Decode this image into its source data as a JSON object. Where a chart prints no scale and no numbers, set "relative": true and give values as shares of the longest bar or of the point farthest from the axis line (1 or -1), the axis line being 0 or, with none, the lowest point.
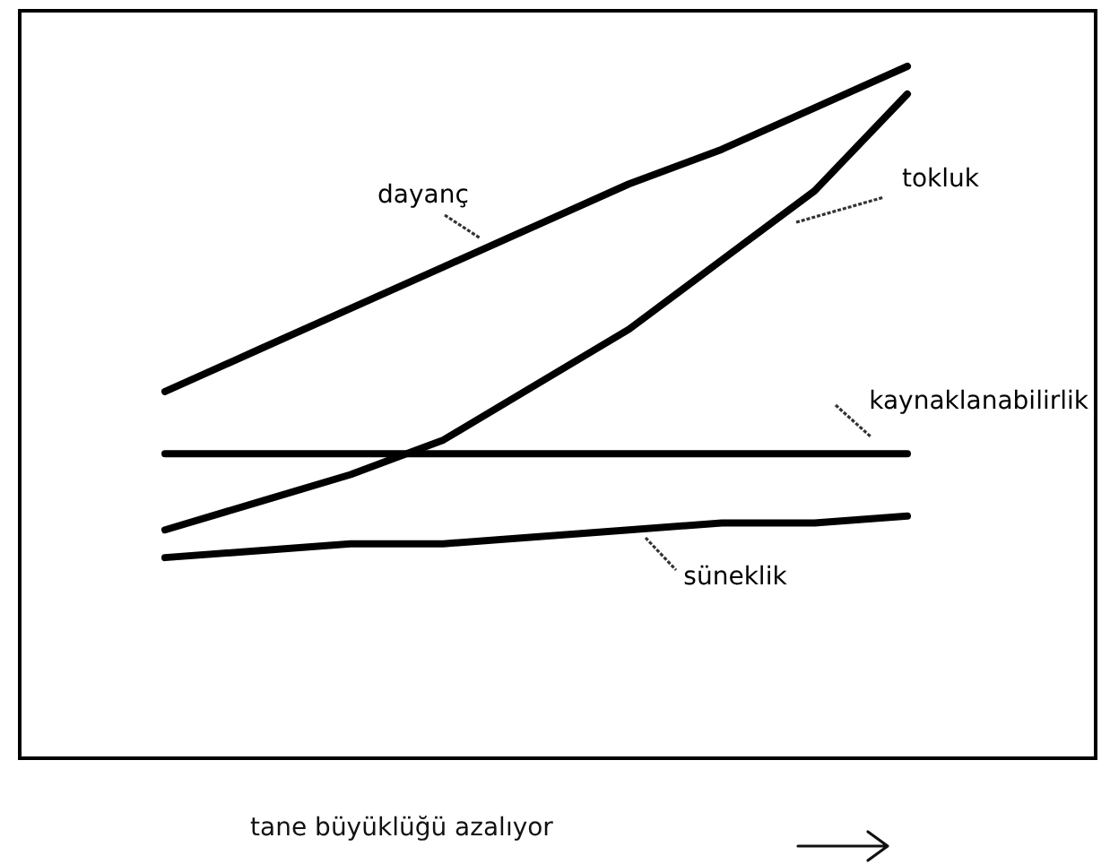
{
  "chart_data": {
    "type": "line",
    "xlabel": "tane büyüklüğü azalıyor",
    "relative": true,
    "categories": [
      null,
      null,
      null,
      null,
      null,
      null,
      null,
      null,
      null
    ],
    "series": [
      {
        "name": "dayanç",
        "color": "#000000",
        "values": [
          0.53,
          0.59,
          0.65,
          0.71,
          0.77,
          0.83,
          0.88,
          0.94,
          1
        ]
      },
      {
        "name": "tokluk",
        "color": "#000000",
        "values": [
          0.33,
          0.37,
          0.41,
          0.46,
          0.54,
          0.62,
          0.72,
          0.82,
          0.96
        ]
      },
      {
        "name": "kaynaklanabilirlik",
        "color": "#000000",
        "values": [
          0.44,
          0.44,
          0.44,
          0.44,
          0.44,
          0.44,
          0.44,
          0.44,
          0.44
        ]
      },
      {
        "name": "süneklik",
        "color": "#000000",
        "values": [
          0.29,
          0.3,
          0.31,
          0.31,
          0.32,
          0.33,
          0.34,
          0.34,
          0.35
        ]
      }
    ]
  }
}
